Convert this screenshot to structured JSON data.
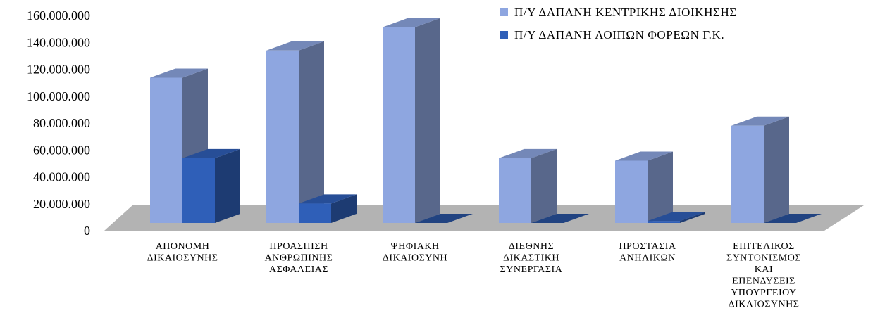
{
  "chart_data": {
    "type": "bar",
    "style": "3d-clustered-column",
    "categories": [
      [
        "ΑΠΟΝΟΜΗ",
        "ΔΙΚΑΙΟΣΥΝΗΣ"
      ],
      [
        "ΠΡΟΑΣΠΙΣΗ",
        "ΑΝΘΡΩΠΙΝΗΣ",
        "ΑΣΦΑΛΕΙΑΣ"
      ],
      [
        "ΨΗΦΙΑΚΗ",
        "ΔΙΚΑΙΟΣΥΝΗ"
      ],
      [
        "ΔΙΕΘΝΗΣ",
        "ΔΙΚΑΣΤΙΚΗ",
        "ΣΥΝΕΡΓΑΣΙΑ"
      ],
      [
        "ΠΡΟΣΤΑΣΙΑ",
        "ΑΝΗΛΙΚΩΝ"
      ],
      [
        "ΕΠΙΤΕΛΙΚΟΣ",
        "ΣΥΝΤΟΝΙΣΜΟΣ",
        "ΚΑΙ",
        "ΕΠΕΝΔΥΣΕΙΣ",
        "ΥΠΟΥΡΓΕΙΟΥ",
        "ΔΙΚΑΙΟΣΥΝΗΣ"
      ]
    ],
    "series": [
      {
        "name": "Π/Υ ΔΑΠΑΝΗ ΚΕΝΤΡΙΚΗΣ ΔΙΟΙΚΗΣΗΣ",
        "color": "#8ea6e0",
        "values": [
          112000000,
          133000000,
          151000000,
          50000000,
          48000000,
          75000000
        ]
      },
      {
        "name": "Π/Υ ΔΑΠΑΝΗ ΛΟΙΠΩΝ ΦΟΡΕΩΝ Γ.Κ.",
        "color": "#2f5fb8",
        "values": [
          50000000,
          15000000,
          0,
          800000,
          1500000,
          0
        ]
      }
    ],
    "yticks": [
      "0",
      "20.000.000",
      "40.000.000",
      "60.000.000",
      "80.000.000",
      "100.000.000",
      "120.000.000",
      "140.000.000",
      "160.000.000"
    ],
    "ylim": [
      0,
      160000000
    ],
    "xlabel": "",
    "ylabel": "",
    "grid": false,
    "legend_position": "top-right"
  }
}
